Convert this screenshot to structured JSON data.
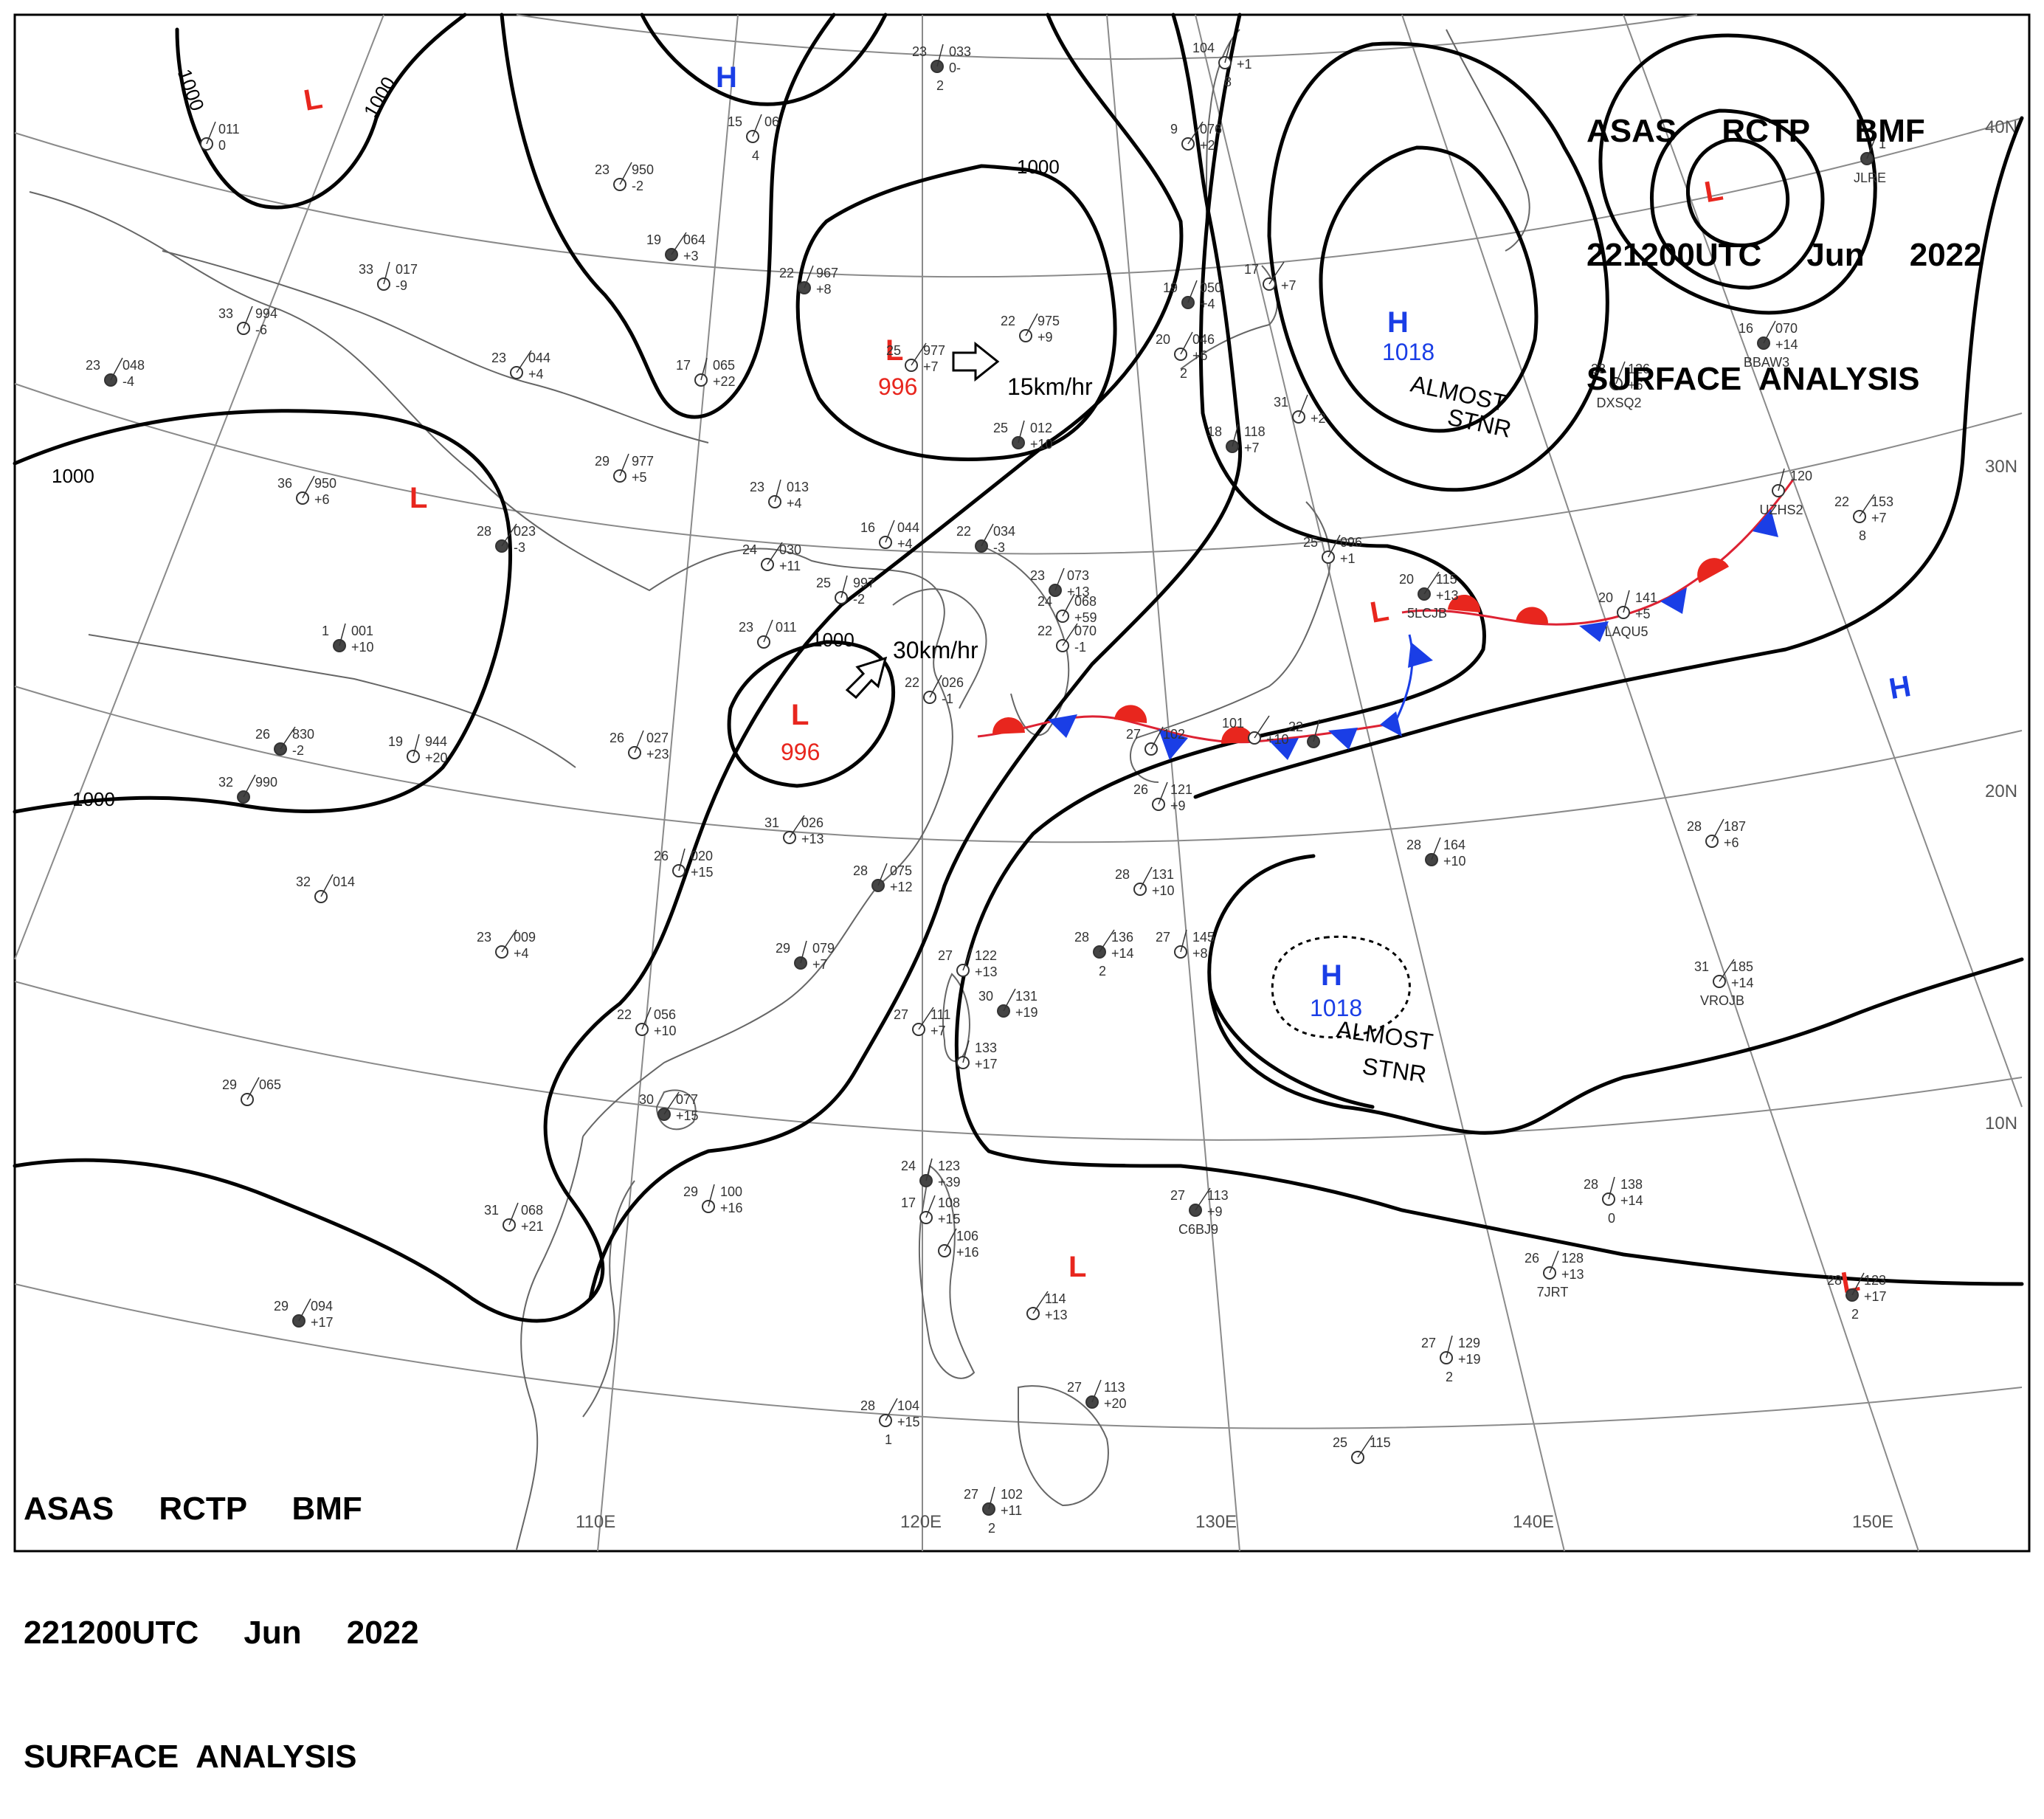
{
  "header_top": {
    "line1": "ASAS     RCTP     BMF",
    "line2": "221200UTC     Jun     2022",
    "line3": "SURFACE  ANALYSIS"
  },
  "header_bottom": {
    "line1": "ASAS     RCTP     BMF",
    "line2": "221200UTC     Jun     2022",
    "line3": "SURFACE  ANALYSIS"
  },
  "colors": {
    "low": "#e8261e",
    "high": "#1a3ee6",
    "warm_front": "#e8261e",
    "cold_front": "#1a3ee6",
    "isobar": "#000000",
    "grid": "#8a8a8a",
    "coast": "#666666"
  },
  "lon_labels": [
    "110E",
    "120E",
    "130E",
    "140E",
    "150E"
  ],
  "lat_labels": [
    "40N",
    "30N",
    "20N",
    "10N"
  ],
  "isobar_labels": [
    "1000",
    "1000",
    "1000",
    "1000",
    "1000",
    "1000"
  ],
  "pressure_centers": [
    {
      "type": "L",
      "value": ""
    },
    {
      "type": "H",
      "value": ""
    },
    {
      "type": "L",
      "value": "996"
    },
    {
      "type": "L",
      "value": ""
    },
    {
      "type": "L",
      "value": "996"
    },
    {
      "type": "H",
      "value": "1018"
    },
    {
      "type": "L",
      "value": ""
    },
    {
      "type": "L",
      "value": ""
    },
    {
      "type": "H",
      "value": "1018"
    },
    {
      "type": "H",
      "value": ""
    },
    {
      "type": "L",
      "value": ""
    },
    {
      "type": "L",
      "value": ""
    }
  ],
  "annotations": [
    {
      "text": "15km/hr"
    },
    {
      "text": "30km/hr"
    },
    {
      "text": "ALMOST"
    },
    {
      "text": "STNR"
    },
    {
      "text": "ALMOST"
    },
    {
      "text": "STNR"
    }
  ],
  "stations": [
    {
      "temp": "23",
      "pres": "033",
      "tend": "0-",
      "extra": "2"
    },
    {
      "temp": "15",
      "pres": "06",
      "tend": "",
      "extra": "4"
    },
    {
      "temp": "23",
      "pres": "950",
      "tend": "-2",
      "extra": ""
    },
    {
      "temp": "19",
      "pres": "064",
      "tend": "+3",
      "extra": ""
    },
    {
      "temp": "33",
      "pres": "017",
      "tend": "-9",
      "extra": ""
    },
    {
      "temp": "33",
      "pres": "994",
      "tend": "-6",
      "extra": ""
    },
    {
      "temp": "23",
      "pres": "048",
      "tend": "-4",
      "extra": ""
    },
    {
      "temp": "23",
      "pres": "044",
      "tend": "+4",
      "extra": ""
    },
    {
      "temp": "17",
      "pres": "065",
      "tend": "+22",
      "extra": ""
    },
    {
      "temp": "22",
      "pres": "967",
      "tend": "+8",
      "extra": ""
    },
    {
      "temp": "22",
      "pres": "975",
      "tend": "+9",
      "extra": ""
    },
    {
      "temp": "25",
      "pres": "977",
      "tend": "+7",
      "extra": ""
    },
    {
      "temp": "25",
      "pres": "012",
      "tend": "+10",
      "extra": ""
    },
    {
      "temp": "29",
      "pres": "977",
      "tend": "+5",
      "extra": ""
    },
    {
      "temp": "36",
      "pres": "950",
      "tend": "+6",
      "extra": ""
    },
    {
      "temp": "28",
      "pres": "023",
      "tend": "-3",
      "extra": ""
    },
    {
      "temp": "23",
      "pres": "013",
      "tend": "+4",
      "extra": ""
    },
    {
      "temp": "16",
      "pres": "044",
      "tend": "+4",
      "extra": ""
    },
    {
      "temp": "22",
      "pres": "034",
      "tend": "-3",
      "extra": ""
    },
    {
      "temp": "24",
      "pres": "030",
      "tend": "+11",
      "extra": ""
    },
    {
      "temp": "25",
      "pres": "997",
      "tend": "-2",
      "extra": ""
    },
    {
      "temp": "23",
      "pres": "073",
      "tend": "+13",
      "extra": ""
    },
    {
      "temp": "24",
      "pres": "068",
      "tend": "+59",
      "extra": ""
    },
    {
      "temp": "22",
      "pres": "070",
      "tend": "-1",
      "extra": ""
    },
    {
      "temp": "1",
      "pres": "001",
      "tend": "+10",
      "extra": ""
    },
    {
      "temp": "23",
      "pres": "011",
      "tend": "",
      "extra": ""
    },
    {
      "temp": "22",
      "pres": "026",
      "tend": "-1",
      "extra": ""
    },
    {
      "temp": "26",
      "pres": "830",
      "tend": "-2",
      "extra": ""
    },
    {
      "temp": "19",
      "pres": "944",
      "tend": "+20",
      "extra": ""
    },
    {
      "temp": "26",
      "pres": "027",
      "tend": "+23",
      "extra": ""
    },
    {
      "temp": "32",
      "pres": "990",
      "tend": "",
      "extra": ""
    },
    {
      "temp": "31",
      "pres": "026",
      "tend": "+13",
      "extra": ""
    },
    {
      "temp": "26",
      "pres": "020",
      "tend": "+15",
      "extra": ""
    },
    {
      "temp": "28",
      "pres": "075",
      "tend": "+12",
      "extra": ""
    },
    {
      "temp": "32",
      "pres": "014",
      "tend": "",
      "extra": ""
    },
    {
      "temp": "23",
      "pres": "009",
      "tend": "+4",
      "extra": ""
    },
    {
      "temp": "29",
      "pres": "079",
      "tend": "+7",
      "extra": ""
    },
    {
      "temp": "22",
      "pres": "056",
      "tend": "+10",
      "extra": ""
    },
    {
      "temp": "29",
      "pres": "065",
      "tend": "",
      "extra": ""
    },
    {
      "temp": "30",
      "pres": "077",
      "tend": "+15",
      "extra": ""
    },
    {
      "temp": "29",
      "pres": "100",
      "tend": "+16",
      "extra": ""
    },
    {
      "temp": "31",
      "pres": "068",
      "tend": "+21",
      "extra": ""
    },
    {
      "temp": "29",
      "pres": "094",
      "tend": "+17",
      "extra": ""
    },
    {
      "temp": "9",
      "pres": "076",
      "tend": "+2",
      "extra": ""
    },
    {
      "temp": "104",
      "pres": "",
      "tend": "+1",
      "extra": "8"
    },
    {
      "temp": "19",
      "pres": "050",
      "tend": "+4",
      "extra": ""
    },
    {
      "temp": "20",
      "pres": "046",
      "tend": "+6",
      "extra": "2"
    },
    {
      "temp": "17",
      "pres": "",
      "tend": "+7",
      "extra": ""
    },
    {
      "temp": "18",
      "pres": "118",
      "tend": "+7",
      "extra": ""
    },
    {
      "temp": "31",
      "pres": "",
      "tend": "+2",
      "extra": ""
    },
    {
      "temp": "25",
      "pres": "096",
      "tend": "+1",
      "extra": ""
    },
    {
      "temp": "20",
      "pres": "115",
      "tend": "+13",
      "extra": "5LCJB"
    },
    {
      "temp": "20",
      "pres": "141",
      "tend": "+5",
      "extra": "LAQU5"
    },
    {
      "temp": "23",
      "pres": "126",
      "tend": "+6",
      "extra": "DXSQ2"
    },
    {
      "temp": "16",
      "pres": "070",
      "tend": "+14",
      "extra": "BBAW3"
    },
    {
      "temp": "22",
      "pres": "153",
      "tend": "+7",
      "extra": "8"
    },
    {
      "temp": "",
      "pres": "120",
      "tend": "",
      "extra": "UZHS2"
    },
    {
      "temp": "",
      "pres": "1",
      "tend": "",
      "extra": "JLRE"
    },
    {
      "temp": "27",
      "pres": "102",
      "tend": "",
      "extra": ""
    },
    {
      "temp": "101",
      "pres": "",
      "tend": "+10",
      "extra": ""
    },
    {
      "temp": "22",
      "pres": "",
      "tend": "",
      "extra": ""
    },
    {
      "temp": "26",
      "pres": "121",
      "tend": "+9",
      "extra": ""
    },
    {
      "temp": "28",
      "pres": "131",
      "tend": "+10",
      "extra": ""
    },
    {
      "temp": "28",
      "pres": "136",
      "tend": "+14",
      "extra": "2"
    },
    {
      "temp": "27",
      "pres": "145",
      "tend": "+8",
      "extra": ""
    },
    {
      "temp": "27",
      "pres": "122",
      "tend": "+13",
      "extra": ""
    },
    {
      "temp": "30",
      "pres": "131",
      "tend": "+19",
      "extra": ""
    },
    {
      "temp": "27",
      "pres": "111",
      "tend": "+7",
      "extra": ""
    },
    {
      "temp": "",
      "pres": "133",
      "tend": "+17",
      "extra": ""
    },
    {
      "temp": "28",
      "pres": "164",
      "tend": "+10",
      "extra": ""
    },
    {
      "temp": "28",
      "pres": "187",
      "tend": "+6",
      "extra": ""
    },
    {
      "temp": "31",
      "pres": "185",
      "tend": "+14",
      "extra": "VROJB"
    },
    {
      "temp": "24",
      "pres": "123",
      "tend": "+39",
      "extra": ""
    },
    {
      "temp": "17",
      "pres": "108",
      "tend": "+15",
      "extra": ""
    },
    {
      "temp": "",
      "pres": "106",
      "tend": "+16",
      "extra": ""
    },
    {
      "temp": "27",
      "pres": "113",
      "tend": "+9",
      "extra": "C6BJ9"
    },
    {
      "temp": "28",
      "pres": "138",
      "tend": "+14",
      "extra": "0"
    },
    {
      "temp": "26",
      "pres": "128",
      "tend": "+13",
      "extra": "7JRT"
    },
    {
      "temp": "28",
      "pres": "123",
      "tend": "+17",
      "extra": "2"
    },
    {
      "temp": "",
      "pres": "114",
      "tend": "+13",
      "extra": ""
    },
    {
      "temp": "27",
      "pres": "129",
      "tend": "+19",
      "extra": "2"
    },
    {
      "temp": "27",
      "pres": "113",
      "tend": "+20",
      "extra": ""
    },
    {
      "temp": "28",
      "pres": "104",
      "tend": "+15",
      "extra": "1"
    },
    {
      "temp": "25",
      "pres": "115",
      "tend": "",
      "extra": ""
    },
    {
      "temp": "27",
      "pres": "102",
      "tend": "+11",
      "extra": "2"
    },
    {
      "temp": "",
      "pres": "011",
      "tend": "0",
      "extra": ""
    }
  ]
}
